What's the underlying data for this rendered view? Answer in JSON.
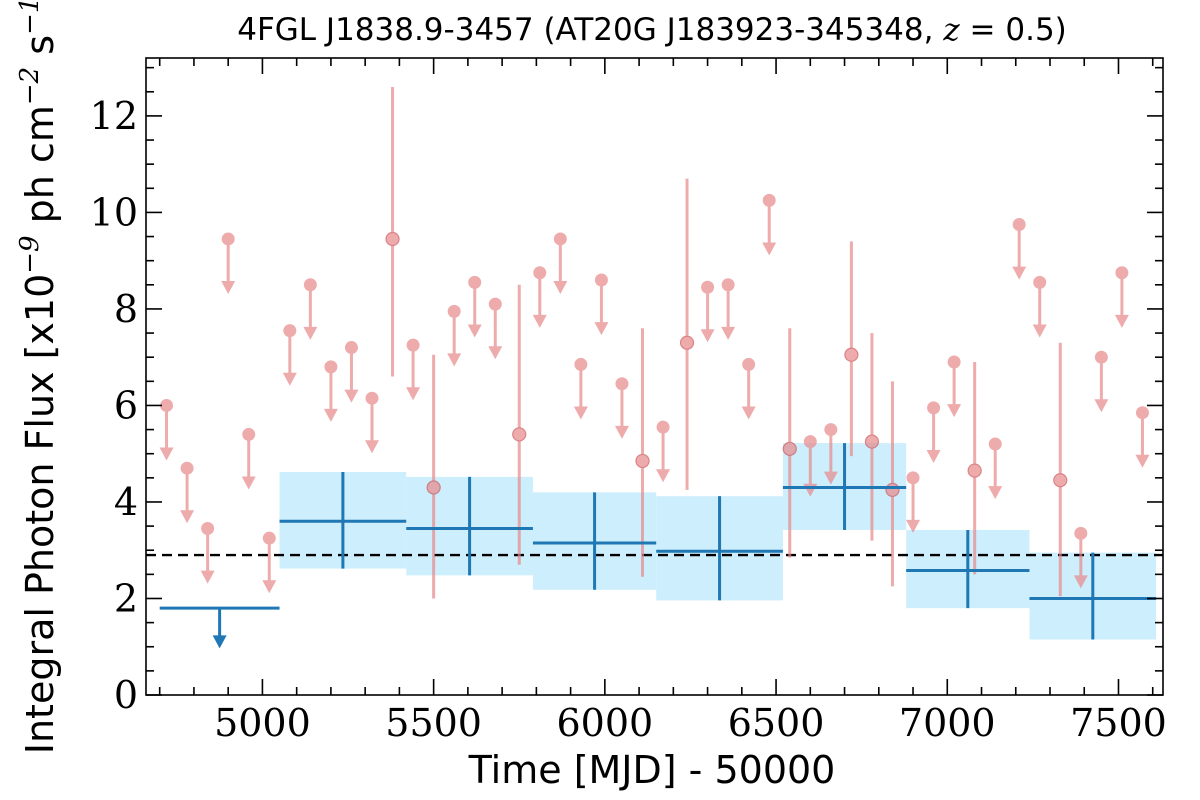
{
  "chart_data": {
    "type": "scatter",
    "title": {
      "prefix": "4FGL J1838.9-3457 (AT20G J183923-345348, ",
      "math_var": "z",
      "math_eq": " = 0.5",
      "suffix": ")"
    },
    "xlabel": "Time [MJD] - 50000",
    "ylabel": {
      "prefix": "Integral Photon Flux [x10",
      "exp1": "−9",
      "mid": " ph cm",
      "exp2": "−2",
      "mid2": " s",
      "exp3": "−1",
      "suffix": "]"
    },
    "xlim": [
      4660,
      7630
    ],
    "ylim": [
      0,
      13.2
    ],
    "x_ticks": [
      5000,
      5500,
      6000,
      6500,
      7000,
      7500
    ],
    "x_tick_labels": [
      "5000",
      "5500",
      "6000",
      "6500",
      "7000",
      "7500"
    ],
    "y_ticks": [
      0,
      2,
      4,
      6,
      8,
      10,
      12
    ],
    "y_tick_labels": [
      "0",
      "2",
      "4",
      "6",
      "8",
      "10",
      "12"
    ],
    "x_minor_step": 100,
    "y_minor_step": 0.5,
    "mean_flux": 2.9,
    "colors": {
      "short_bin": "#e8888a",
      "long_bin": "#1f77b4",
      "band_fill": "#cdeefc",
      "mean_line": "#000000"
    },
    "series": [
      {
        "type": "upper_limits",
        "points": [
          {
            "x": 4720,
            "y": 6.0
          },
          {
            "x": 4780,
            "y": 4.7
          },
          {
            "x": 4840,
            "y": 3.45
          },
          {
            "x": 4900,
            "y": 9.45
          },
          {
            "x": 4960,
            "y": 5.4
          },
          {
            "x": 5020,
            "y": 3.25
          },
          {
            "x": 5080,
            "y": 7.55
          },
          {
            "x": 5140,
            "y": 8.5
          },
          {
            "x": 5200,
            "y": 6.8
          },
          {
            "x": 5260,
            "y": 7.2
          },
          {
            "x": 5320,
            "y": 6.15
          },
          {
            "x": 5440,
            "y": 7.25
          },
          {
            "x": 5560,
            "y": 7.95
          },
          {
            "x": 5620,
            "y": 8.55
          },
          {
            "x": 5680,
            "y": 8.1
          },
          {
            "x": 5810,
            "y": 8.75
          },
          {
            "x": 5870,
            "y": 9.45
          },
          {
            "x": 5930,
            "y": 6.85
          },
          {
            "x": 5990,
            "y": 8.6
          },
          {
            "x": 6050,
            "y": 6.45
          },
          {
            "x": 6170,
            "y": 5.55
          },
          {
            "x": 6300,
            "y": 8.45
          },
          {
            "x": 6360,
            "y": 8.5
          },
          {
            "x": 6420,
            "y": 6.85
          },
          {
            "x": 6480,
            "y": 10.25
          },
          {
            "x": 6600,
            "y": 5.25
          },
          {
            "x": 6660,
            "y": 5.5
          },
          {
            "x": 6900,
            "y": 4.5
          },
          {
            "x": 6960,
            "y": 5.95
          },
          {
            "x": 7020,
            "y": 6.9
          },
          {
            "x": 7140,
            "y": 5.2
          },
          {
            "x": 7210,
            "y": 9.75
          },
          {
            "x": 7270,
            "y": 8.55
          },
          {
            "x": 7390,
            "y": 3.35
          },
          {
            "x": 7450,
            "y": 7.0
          },
          {
            "x": 7510,
            "y": 8.75
          },
          {
            "x": 7570,
            "y": 5.85
          }
        ]
      },
      {
        "type": "detections",
        "points": [
          {
            "x": 5380,
            "y": 9.45,
            "lo": 6.6,
            "hi": 12.6
          },
          {
            "x": 5500,
            "y": 4.3,
            "lo": 2.0,
            "hi": 7.05
          },
          {
            "x": 5750,
            "y": 5.4,
            "lo": 2.7,
            "hi": 8.5
          },
          {
            "x": 6110,
            "y": 4.85,
            "lo": 2.45,
            "hi": 7.6
          },
          {
            "x": 6240,
            "y": 7.3,
            "lo": 4.25,
            "hi": 10.7
          },
          {
            "x": 6540,
            "y": 5.1,
            "lo": 2.85,
            "hi": 7.6
          },
          {
            "x": 6720,
            "y": 7.05,
            "lo": 4.95,
            "hi": 9.4
          },
          {
            "x": 6780,
            "y": 5.25,
            "lo": 3.2,
            "hi": 7.5
          },
          {
            "x": 6840,
            "y": 4.25,
            "lo": 2.25,
            "hi": 6.5
          },
          {
            "x": 7080,
            "y": 4.65,
            "lo": 2.5,
            "hi": 6.9
          },
          {
            "x": 7330,
            "y": 4.45,
            "lo": 2.05,
            "hi": 7.3
          }
        ]
      },
      {
        "type": "long_bins",
        "bins": [
          {
            "x0": 4700,
            "x1": 5050,
            "y": 1.8,
            "upper_limit": true
          },
          {
            "x0": 5050,
            "x1": 5420,
            "y": 3.6,
            "lo": 2.62,
            "hi": 4.62
          },
          {
            "x0": 5420,
            "x1": 5790,
            "y": 3.45,
            "lo": 2.48,
            "hi": 4.52
          },
          {
            "x0": 5790,
            "x1": 6150,
            "y": 3.15,
            "lo": 2.18,
            "hi": 4.2
          },
          {
            "x0": 6150,
            "x1": 6520,
            "y": 2.98,
            "lo": 1.96,
            "hi": 4.12
          },
          {
            "x0": 6520,
            "x1": 6880,
            "y": 4.3,
            "lo": 3.42,
            "hi": 5.22
          },
          {
            "x0": 6880,
            "x1": 7240,
            "y": 2.58,
            "lo": 1.8,
            "hi": 3.42
          },
          {
            "x0": 7240,
            "x1": 7610,
            "y": 2.0,
            "lo": 1.15,
            "hi": 2.95
          }
        ]
      }
    ]
  }
}
